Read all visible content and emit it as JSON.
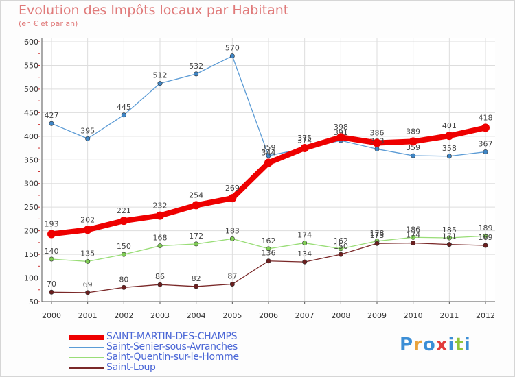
{
  "header": {
    "title": "Evolution des Impôts locaux par Habitant",
    "subtitle": "(en € et par an)"
  },
  "logo": {
    "text": "Proxiti",
    "letters": [
      {
        "ch": "P",
        "color": "#3b8ed6"
      },
      {
        "ch": "r",
        "color": "#e9a23b"
      },
      {
        "ch": "o",
        "color": "#3b8ed6"
      },
      {
        "ch": "x",
        "color": "#e23b3b"
      },
      {
        "ch": "i",
        "color": "#3b8ed6"
      },
      {
        "ch": "t",
        "color": "#8fc43b"
      },
      {
        "ch": "i",
        "color": "#3b8ed6"
      }
    ]
  },
  "chart_data": {
    "type": "line",
    "title": "Evolution des Impôts locaux par Habitant",
    "subtitle": "(en € et par an)",
    "x": [
      "2000",
      "2001",
      "2002",
      "2003",
      "2004",
      "2005",
      "2006",
      "2007",
      "2008",
      "2009",
      "2010",
      "2011",
      "2012"
    ],
    "ylim": [
      50,
      600
    ],
    "yticks": [
      50,
      100,
      150,
      200,
      250,
      300,
      350,
      400,
      450,
      500,
      550,
      600
    ],
    "grid": true,
    "legend": "bottom-left",
    "series": [
      {
        "name": "SAINT-MARTIN-DES-CHAMPS",
        "color": "#ee0000",
        "width": 8,
        "values": [
          193,
          202,
          221,
          232,
          254,
          269,
          344,
          375,
          398,
          386,
          389,
          401,
          418
        ]
      },
      {
        "name": "Saint-Senier-sous-Avranches",
        "color": "#5b9bd5",
        "width": 1.3,
        "values": [
          427,
          395,
          445,
          512,
          532,
          570,
          359,
          374,
          391,
          373,
          359,
          358,
          367
        ]
      },
      {
        "name": "Saint-Quentin-sur-le-Homme",
        "color": "#99dd77",
        "width": 1.3,
        "values": [
          140,
          135,
          150,
          168,
          172,
          183,
          162,
          174,
          162,
          178,
          186,
          185,
          189
        ]
      },
      {
        "name": "Saint-Loup",
        "color": "#7a2828",
        "width": 1.3,
        "values": [
          70,
          69,
          80,
          86,
          82,
          87,
          136,
          134,
          150,
          173,
          174,
          171,
          169
        ]
      }
    ]
  }
}
